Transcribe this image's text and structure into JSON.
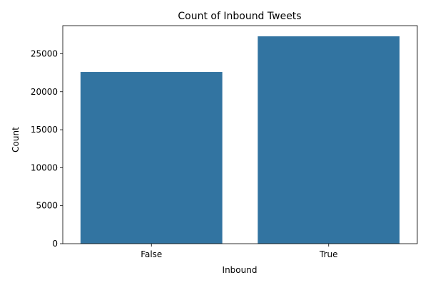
{
  "chart_data": {
    "type": "bar",
    "title": "Count of Inbound Tweets",
    "xlabel": "Inbound",
    "ylabel": "Count",
    "categories": [
      "False",
      "True"
    ],
    "values": [
      22600,
      27300
    ],
    "ylim": [
      0,
      28700
    ],
    "yticks": [
      0,
      5000,
      10000,
      15000,
      20000,
      25000
    ],
    "ytick_labels": [
      "0",
      "5000",
      "10000",
      "15000",
      "20000",
      "25000"
    ],
    "grid": false,
    "legend": "none",
    "bar_color": "#3274a1"
  }
}
